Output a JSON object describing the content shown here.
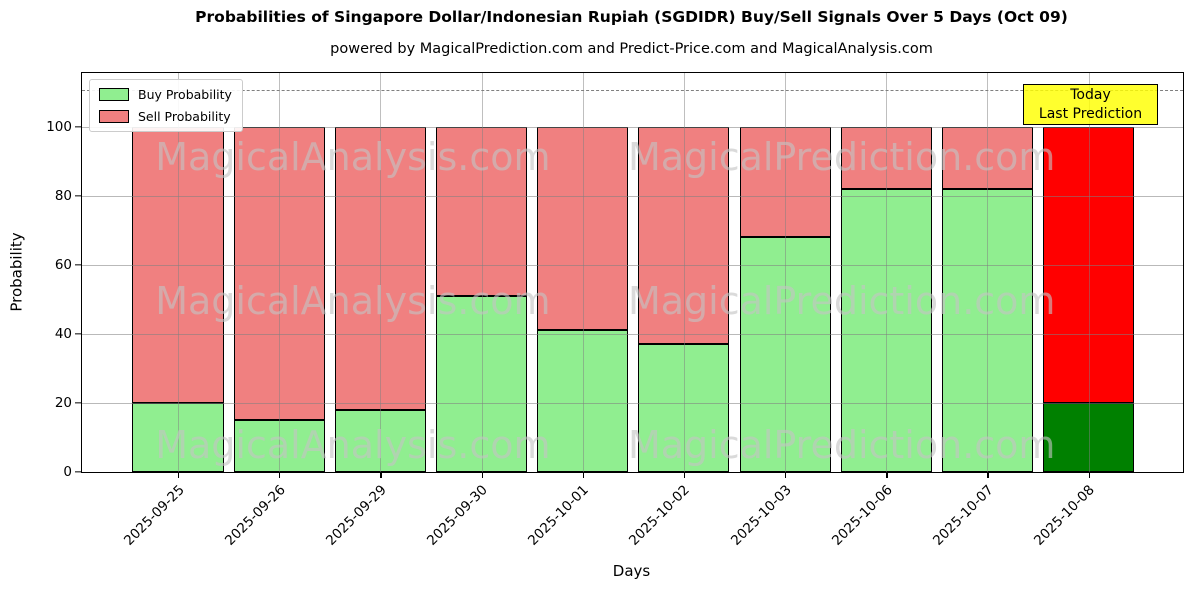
{
  "title": "Probabilities of Singapore Dollar/Indonesian Rupiah (SGDIDR) Buy/Sell Signals Over 5 Days (Oct 09)",
  "subtitle": "powered by MagicalPrediction.com and Predict-Price.com and MagicalAnalysis.com",
  "axes": {
    "x_label": "Days",
    "y_label": "Probability",
    "y_ticks": [
      0,
      20,
      40,
      60,
      80,
      100
    ],
    "grid": true,
    "dashed_guide_y": 110.5
  },
  "legend": {
    "position": "upper-left",
    "items": [
      {
        "label": "Buy Probability",
        "color": "#90ee90"
      },
      {
        "label": "Sell Probability",
        "color": "#f08080"
      }
    ]
  },
  "annotation": {
    "lines": [
      "Today",
      "Last Prediction"
    ],
    "bg_color": "#ffff00"
  },
  "watermarks": {
    "left": "MagicalAnalysis.com",
    "right": "MagicalPrediction.com"
  },
  "chart_data": {
    "type": "bar",
    "stacked": true,
    "title": "Probabilities of Singapore Dollar/Indonesian Rupiah (SGDIDR) Buy/Sell Signals Over 5 Days (Oct 09)",
    "xlabel": "Days",
    "ylabel": "Probability",
    "ylim": [
      0,
      115.5
    ],
    "categories": [
      "2025-09-25",
      "2025-09-26",
      "2025-09-29",
      "2025-09-30",
      "2025-10-01",
      "2025-10-02",
      "2025-10-03",
      "2025-10-06",
      "2025-10-07",
      "2025-10-08"
    ],
    "series": [
      {
        "name": "Buy Probability",
        "color": "#90ee90",
        "values": [
          20,
          15,
          18,
          51,
          41,
          37,
          68,
          82,
          82,
          20
        ]
      },
      {
        "name": "Sell Probability",
        "color": "#f08080",
        "values": [
          80,
          85,
          82,
          49,
          59,
          63,
          32,
          18,
          18,
          80
        ]
      }
    ],
    "highlight_last_bar": {
      "buy_color": "#008000",
      "sell_color": "#ff0000"
    },
    "bar_edge_color": "#000000",
    "legend_position": "upper left"
  }
}
